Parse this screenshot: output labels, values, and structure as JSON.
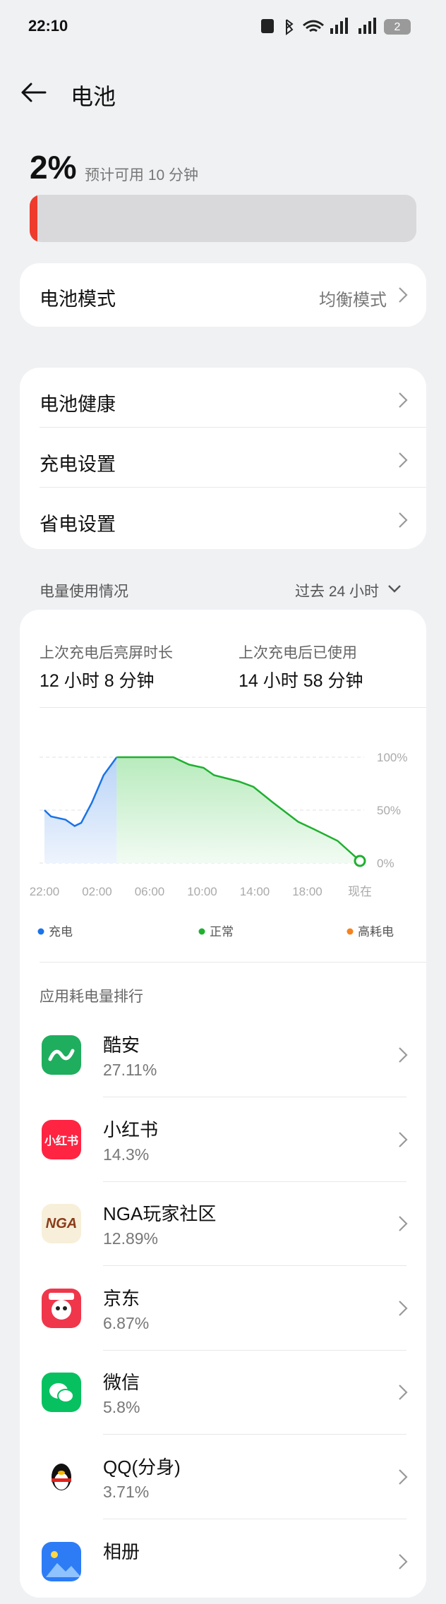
{
  "status_bar": {
    "time": "22:10",
    "battery": "2"
  },
  "header": {
    "title": "电池"
  },
  "battery": {
    "level": 2,
    "level_label": "2%",
    "estimate": "预计可用 10 分钟"
  },
  "mode_card": {
    "label": "电池模式",
    "value": "均衡模式"
  },
  "settings": [
    "电池健康",
    "充电设置",
    "省电设置"
  ],
  "usage": {
    "title": "电量使用情况",
    "range": "过去 24 小时",
    "stats": [
      {
        "label": "上次充电后亮屏时长",
        "value": "12 小时 8 分钟"
      },
      {
        "label": "上次充电后已使用",
        "value": "14 小时 58 分钟"
      }
    ]
  },
  "chart_data": {
    "type": "area",
    "x": [
      0,
      0.5,
      1.6,
      2.3,
      2.8,
      3.6,
      4.5,
      5.5,
      9.8,
      11,
      12.1,
      12.9,
      14.8,
      15.9,
      17.4,
      19.3,
      20.5,
      22.3,
      24
    ],
    "series": [
      {
        "name": "充电",
        "color": "#1a73e8",
        "values": [
          50,
          44,
          41,
          35,
          38,
          57,
          83,
          100,
          null,
          null,
          null,
          null,
          null,
          null,
          null,
          null,
          null,
          null,
          null
        ]
      },
      {
        "name": "正常",
        "color": "#1fb030",
        "values": [
          null,
          null,
          null,
          null,
          null,
          null,
          null,
          100,
          100,
          93,
          90,
          83,
          77,
          72,
          57,
          39,
          32,
          21,
          2
        ]
      },
      {
        "name": "高耗电",
        "color": "#f5821f",
        "values": [
          null,
          null,
          null,
          null,
          null,
          null,
          null,
          null,
          null,
          null,
          null,
          null,
          null,
          null,
          null,
          null,
          null,
          null,
          null
        ]
      }
    ],
    "xlim": [
      0,
      24
    ],
    "ylim": [
      0,
      100
    ],
    "xticks": [
      {
        "value": 0,
        "label": "22:00"
      },
      {
        "value": 4,
        "label": "02:00"
      },
      {
        "value": 8,
        "label": "06:00"
      },
      {
        "value": 12,
        "label": "10:00"
      },
      {
        "value": 16,
        "label": "14:00"
      },
      {
        "value": 20,
        "label": "18:00"
      },
      {
        "value": 24,
        "label": "现在"
      }
    ],
    "yticks": [
      {
        "value": 0,
        "label": "0%"
      },
      {
        "value": 50,
        "label": "50%"
      },
      {
        "value": 100,
        "label": "100%"
      }
    ],
    "grid": true
  },
  "ranking": {
    "title": "应用耗电量排行",
    "apps": [
      {
        "name": "酷安",
        "share": "27.11%"
      },
      {
        "name": "小红书",
        "share": "14.3%",
        "icon_label": "小红书"
      },
      {
        "name": "NGA玩家社区",
        "share": "12.89%",
        "icon_label": "NGA"
      },
      {
        "name": "京东",
        "share": "6.87%"
      },
      {
        "name": "微信",
        "share": "5.8%"
      },
      {
        "name": "QQ(分身)",
        "share": "3.71%"
      },
      {
        "name": "相册"
      }
    ]
  }
}
